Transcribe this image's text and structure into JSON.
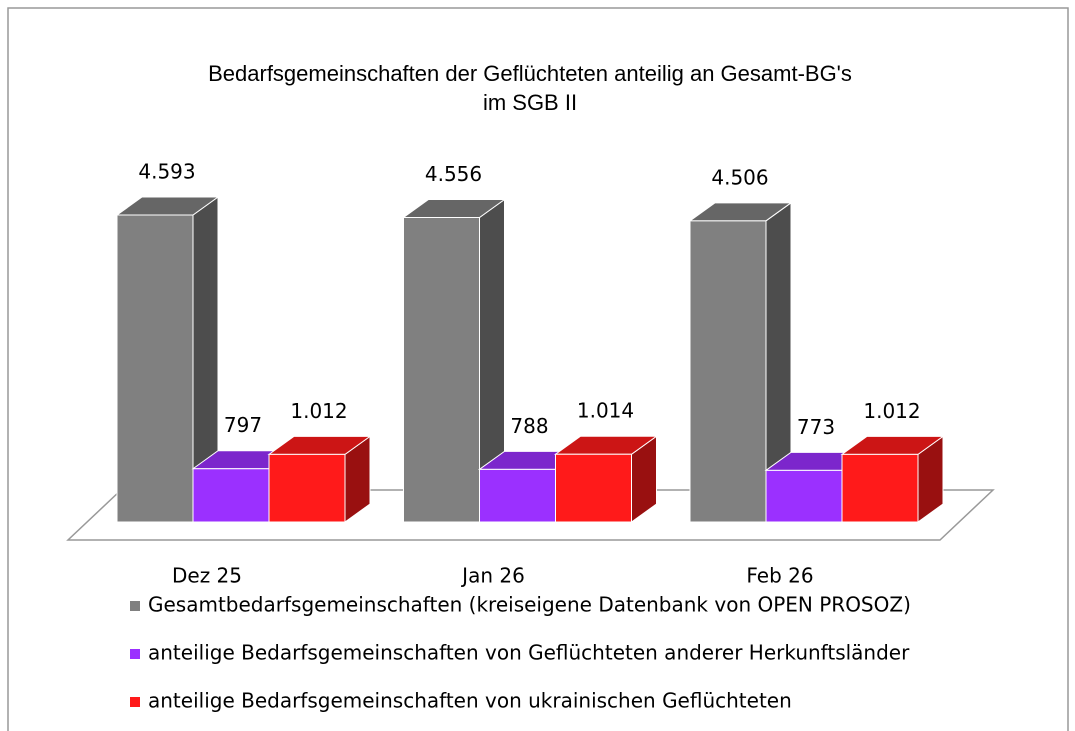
{
  "chart_data": {
    "type": "bar3d",
    "title": [
      "Bedarfsgemeinschaften der Geflüchteten anteilig an Gesamt-BG's",
      "im SGB II"
    ],
    "categories": [
      "Dez 25",
      "Jan 26",
      "Feb 26"
    ],
    "series": [
      {
        "name": "Gesamtbedarfsgemeinschaften (kreiseigene Datenbank von OPEN PROSOZ)",
        "color": "#808080",
        "values": [
          4593,
          4556,
          4506
        ],
        "value_labels": [
          "4.593",
          "4.556",
          "4.506"
        ]
      },
      {
        "name": "anteilige Bedarfsgemeinschaften von Geflüchteten anderer Herkunftsländer",
        "color": "#9b30ff",
        "values": [
          797,
          788,
          773
        ]
      },
      {
        "name": "anteilige Bedarfsgemeinschaften von ukrainischen Geflüchteten",
        "color": "#ff1a1a",
        "values": [
          1012,
          1014,
          1012
        ],
        "value_labels": [
          "1.012",
          "1.014",
          "1.012"
        ]
      }
    ],
    "legend": "bottom"
  }
}
